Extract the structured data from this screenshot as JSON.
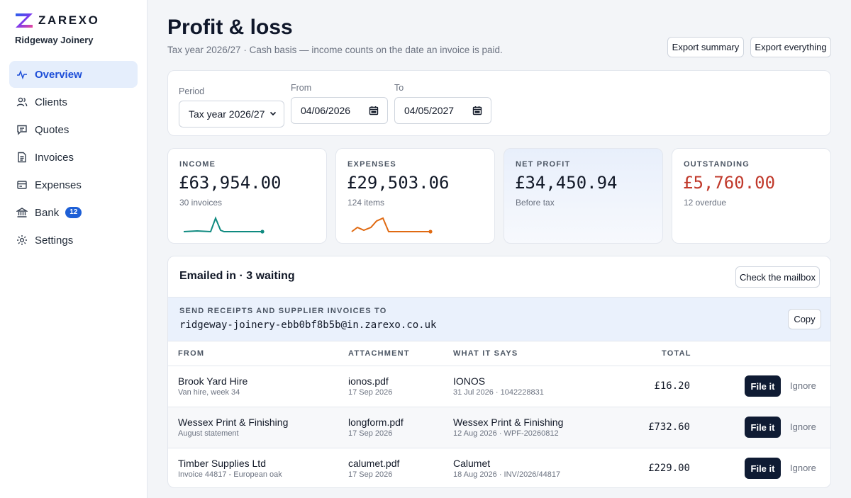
{
  "brand": {
    "name": "ZAREXO",
    "org": "Ridgeway Joinery"
  },
  "nav": [
    {
      "label": "Overview",
      "icon": "activity-icon",
      "active": true
    },
    {
      "label": "Clients",
      "icon": "users-icon"
    },
    {
      "label": "Quotes",
      "icon": "message-icon"
    },
    {
      "label": "Invoices",
      "icon": "file-text-icon"
    },
    {
      "label": "Expenses",
      "icon": "receipt-icon"
    },
    {
      "label": "Bank",
      "icon": "bank-icon",
      "badge": "12"
    },
    {
      "label": "Settings",
      "icon": "gear-icon"
    }
  ],
  "header": {
    "title": "Profit & loss",
    "subtitle": "Tax year 2026/27 · Cash basis — income counts on the date an invoice is paid.",
    "export_summary": "Export summary",
    "export_everything": "Export everything"
  },
  "filters": {
    "period_label": "Period",
    "period_value": "Tax year 2026/27",
    "from_label": "From",
    "from_value": "04/06/2026",
    "to_label": "To",
    "to_value": "04/05/2027"
  },
  "stats": [
    {
      "label": "INCOME",
      "value": "£63,954.00",
      "sub": "30 invoices",
      "spark_color": "#0f8a80"
    },
    {
      "label": "EXPENSES",
      "value": "£29,503.06",
      "sub": "124 items",
      "spark_color": "#e06a12"
    },
    {
      "label": "NET PROFIT",
      "value": "£34,450.94",
      "sub": "Before tax"
    },
    {
      "label": "OUTSTANDING",
      "value": "£5,760.00",
      "sub": "12 overdue",
      "value_color": "#c0392b"
    }
  ],
  "inbox": {
    "title": "Emailed in · 3 waiting",
    "check_label": "Check the mailbox",
    "address_label": "SEND RECEIPTS AND SUPPLIER INVOICES TO",
    "address": "ridgeway-joinery-ebb0bf8b5b@in.zarexo.co.uk",
    "copy_label": "Copy",
    "columns": {
      "from": "FROM",
      "attachment": "ATTACHMENT",
      "says": "WHAT IT SAYS",
      "total": "TOTAL"
    },
    "rows": [
      {
        "from": "Brook Yard Hire",
        "from_sub": "Van hire, week 34",
        "file": "ionos.pdf",
        "file_date": "17 Sep 2026",
        "says": "IONOS",
        "says_sub": "31 Jul 2026 · 1042228831",
        "total": "£16.20",
        "file_it": "File it",
        "ignore": "Ignore"
      },
      {
        "from": "Wessex Print & Finishing",
        "from_sub": "August statement",
        "file": "longform.pdf",
        "file_date": "17 Sep 2026",
        "says": "Wessex Print & Finishing",
        "says_sub": "12 Aug 2026 · WPF-20260812",
        "total": "£732.60",
        "file_it": "File it",
        "ignore": "Ignore"
      },
      {
        "from": "Timber Supplies Ltd",
        "from_sub": "Invoice 44817 - European oak",
        "file": "calumet.pdf",
        "file_date": "17 Sep 2026",
        "says": "Calumet",
        "says_sub": "18 Aug 2026 · INV/2026/44817",
        "total": "£229.00",
        "file_it": "File it",
        "ignore": "Ignore"
      }
    ]
  }
}
